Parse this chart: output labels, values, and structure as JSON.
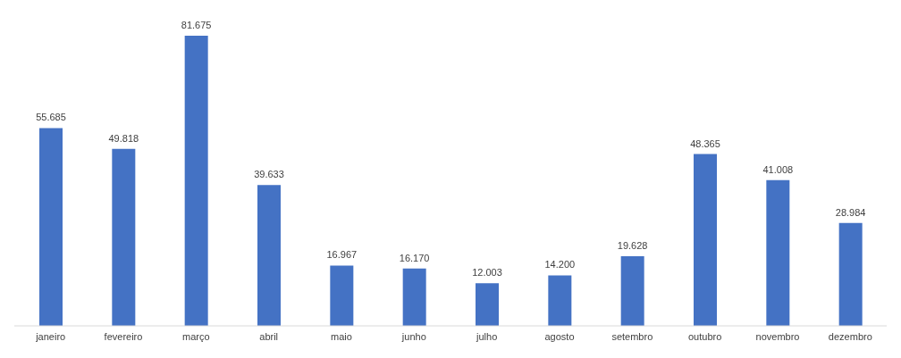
{
  "chart_data": {
    "type": "bar",
    "categories": [
      "janeiro",
      "fevereiro",
      "março",
      "abril",
      "maio",
      "junho",
      "julho",
      "agosto",
      "setembro",
      "outubro",
      "novembro",
      "dezembro"
    ],
    "values": [
      55685,
      49818,
      81675,
      39633,
      16967,
      16170,
      12003,
      14200,
      19628,
      48365,
      41008,
      28984
    ],
    "value_labels": [
      "55.685",
      "49.818",
      "81.675",
      "39.633",
      "16.967",
      "16.170",
      "12.003",
      "14.200",
      "19.628",
      "48.365",
      "41.008",
      "28.984"
    ],
    "color": "#4472c4"
  }
}
